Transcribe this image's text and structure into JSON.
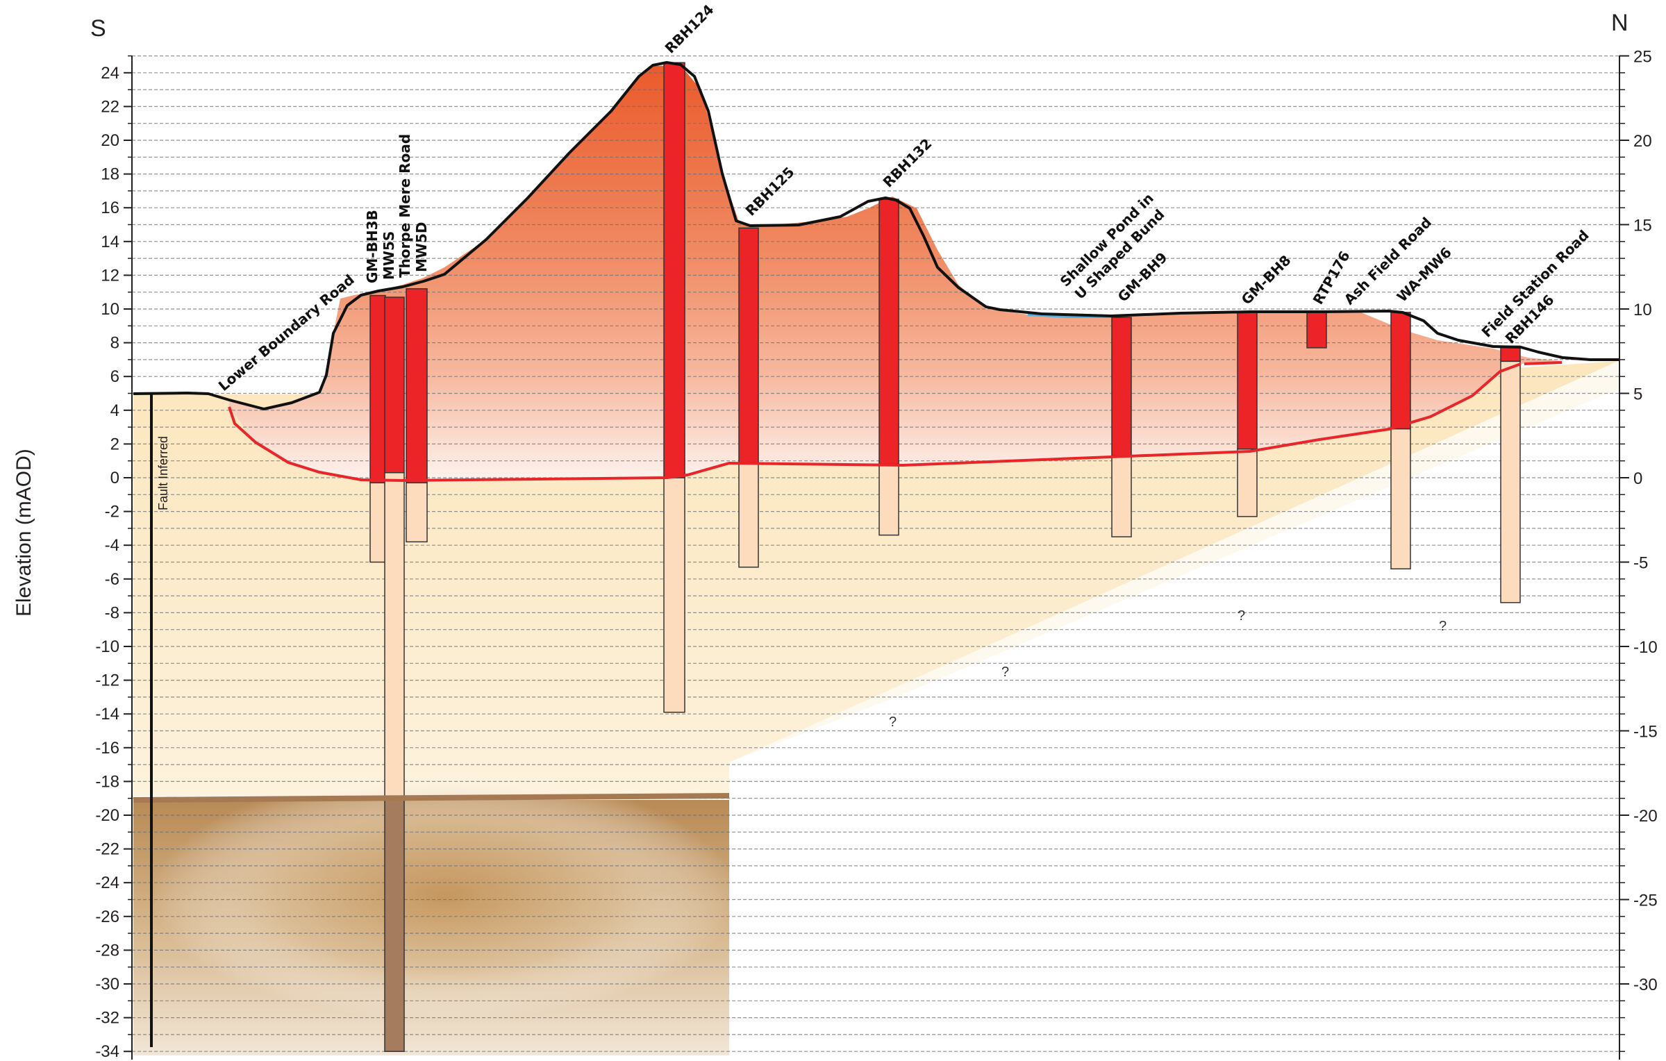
{
  "figure": {
    "direction_left": "S",
    "direction_right": "N",
    "y_axis_title": "Elevation (mAOD)",
    "fault_label": "Fault Inferred",
    "uncertain_marker": "?"
  },
  "chart_data": {
    "type": "cross-section",
    "ylabel": "Elevation (mAOD)",
    "left_axis": {
      "ylim": [
        -34,
        25
      ],
      "ticks": [
        24,
        22,
        20,
        18,
        16,
        14,
        12,
        10,
        8,
        6,
        4,
        2,
        0,
        -2,
        -4,
        -6,
        -8,
        -10,
        -12,
        -14,
        -16,
        -18,
        -20,
        -22,
        -24,
        -26,
        -28,
        -30,
        -32,
        -34
      ]
    },
    "right_axis": {
      "ylim": [
        -34,
        25
      ],
      "ticks": [
        25,
        20,
        15,
        10,
        5,
        0,
        -5,
        -10,
        -15,
        -20,
        -25,
        -30
      ]
    },
    "boreholes": [
      {
        "name": "GM-BH3B",
        "made_ground_top": 10.8,
        "made_ground_base": -0.3,
        "natural_base": -5.0
      },
      {
        "name": "MW5S",
        "made_ground_top": 10.7,
        "made_ground_base": 0.3,
        "natural_base": -19.0,
        "bedrock_base": -34.0
      },
      {
        "name": "MW5D",
        "made_ground_top": 11.2,
        "made_ground_base": -0.3,
        "natural_base": -3.8
      },
      {
        "name": "RBH124",
        "made_ground_top": 24.6,
        "made_ground_base": 0.0,
        "natural_base": -13.9
      },
      {
        "name": "RBH125",
        "made_ground_top": 14.8,
        "made_ground_base": 0.9,
        "natural_base": -5.3
      },
      {
        "name": "RBH132",
        "made_ground_top": 16.5,
        "made_ground_base": 0.8,
        "natural_base": -3.4
      },
      {
        "name": "GM-BH9",
        "made_ground_top": 9.5,
        "made_ground_base": 1.3,
        "natural_base": -3.5
      },
      {
        "name": "GM-BH8",
        "made_ground_top": 9.8,
        "made_ground_base": 1.7,
        "natural_base": -2.3
      },
      {
        "name": "RTP176",
        "made_ground_top": 9.8,
        "made_ground_base": 7.7
      },
      {
        "name": "WA-MW6",
        "made_ground_top": 9.8,
        "made_ground_base": 2.9,
        "natural_base": -5.4
      },
      {
        "name": "RBH146",
        "made_ground_top": 7.8,
        "made_ground_base": 6.9,
        "natural_base": -7.4
      }
    ],
    "ground_surface": [
      {
        "station": 0,
        "elev": 5.0
      },
      {
        "station": 1,
        "elev": 5.0
      },
      {
        "station": 2,
        "elev": 4.7
      },
      {
        "station": 3,
        "elev": 4.1
      },
      {
        "station": 4,
        "elev": 5.0
      },
      {
        "station": 5,
        "elev": 10.8
      },
      {
        "station": 6,
        "elev": 11.8
      },
      {
        "station": 7,
        "elev": 16.4
      },
      {
        "station": 8,
        "elev": 21.8
      },
      {
        "station": 9,
        "elev": 24.6
      },
      {
        "station": 10,
        "elev": 15.0
      },
      {
        "station": 11,
        "elev": 15.5
      },
      {
        "station": 12,
        "elev": 16.6
      },
      {
        "station": 13,
        "elev": 12.5
      },
      {
        "station": 14,
        "elev": 10.1
      },
      {
        "station": 15,
        "elev": 9.6
      },
      {
        "station": 16,
        "elev": 9.9
      },
      {
        "station": 17,
        "elev": 10.0
      },
      {
        "station": 18,
        "elev": 9.9
      },
      {
        "station": 19,
        "elev": 7.8
      },
      {
        "station": 20,
        "elev": 7.0
      }
    ]
  },
  "labels": {
    "lower_boundary_road": "Lower Boundary Road",
    "gm_bh3b": "GM-BH3B",
    "mw5s": "MW5S",
    "thorpe_mere_road": "Thorpe Mere Road",
    "mw5d": "MW5D",
    "rbh124": "RBH124",
    "rbh125": "RBH125",
    "rbh132": "RBH132",
    "shallow_pond": "Shallow Pond in",
    "u_shaped_bund": "U Shaped Bund",
    "gm_bh9": "GM-BH9",
    "gm_bh8": "GM-BH8",
    "rtp176": "RTP176",
    "ash_field_road": "Ash Field Road",
    "wa_mw6": "WA-MW6",
    "field_station_road": "Field Station Road",
    "rbh146": "RBH146"
  },
  "colors": {
    "made_ground_top": "#ee6a3c",
    "made_ground_bottom": "#fdeee6",
    "natural_deposits": "#fbe6bc",
    "bedrock": "#c79a5e",
    "borehole_made_ground": "#ec2327",
    "borehole_natural": "#fcdcbd",
    "borehole_bedrock": "#a67c5e",
    "contact_line": "#e8262a",
    "pond": "#4fb3e3"
  }
}
